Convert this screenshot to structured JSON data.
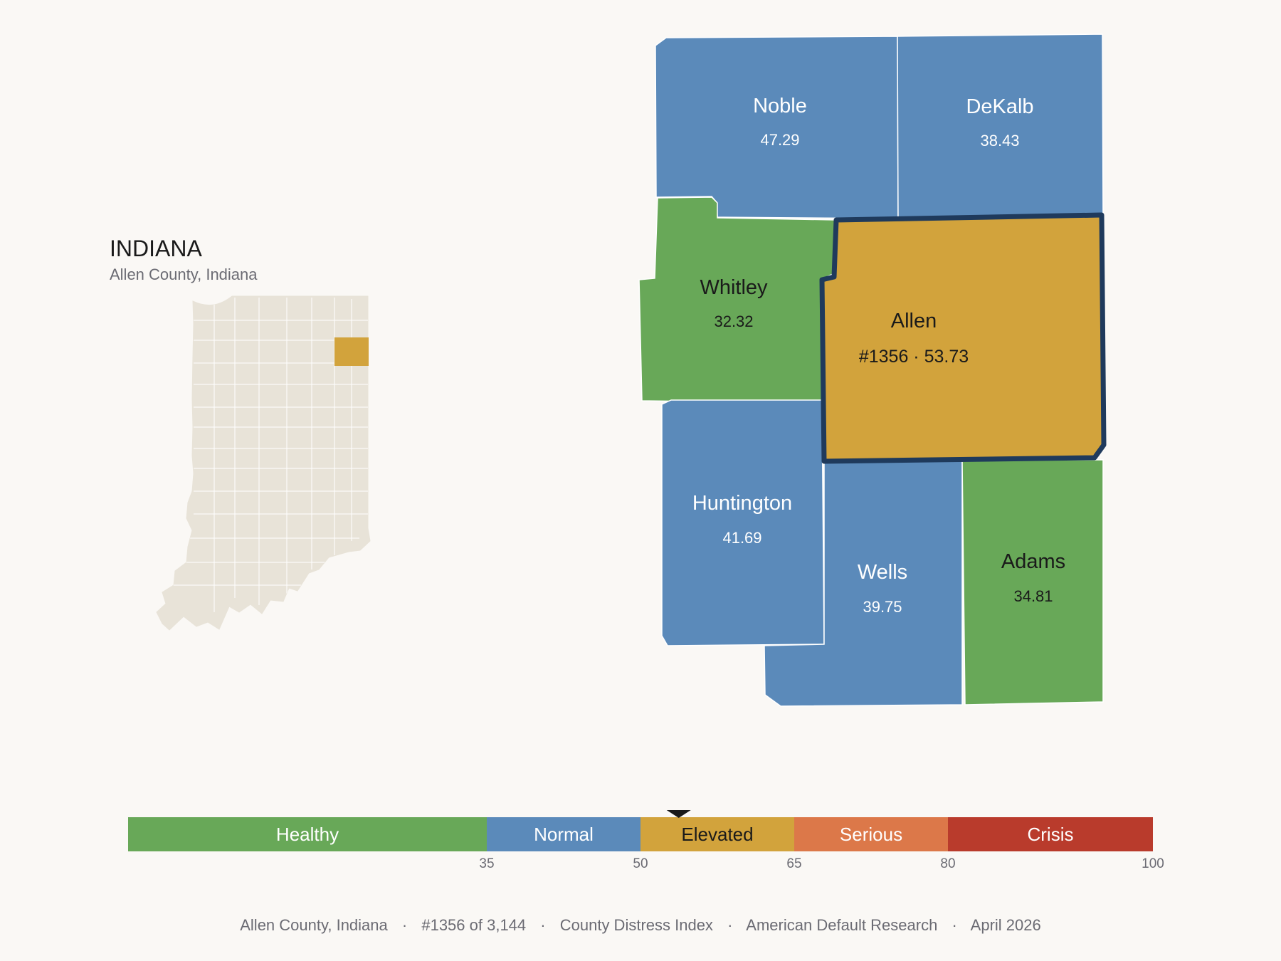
{
  "inset": {
    "state_title": "INDIANA",
    "subtitle": "Allen County, Indiana"
  },
  "colors": {
    "healthy": "#68a858",
    "normal": "#5b8aba",
    "elevated": "#d2a33c",
    "serious": "#dc7849",
    "crisis": "#b93b2c",
    "highlight_border": "#1f3a5c",
    "state_fill": "#e8e3d8",
    "state_line": "#ffffff"
  },
  "counties": [
    {
      "name": "Noble",
      "value": "47.29",
      "category": "normal"
    },
    {
      "name": "DeKalb",
      "value": "38.43",
      "category": "normal"
    },
    {
      "name": "Whitley",
      "value": "32.32",
      "category": "healthy"
    },
    {
      "name": "Allen",
      "value": "#1356 · 53.73",
      "category": "elevated",
      "highlighted": true
    },
    {
      "name": "Huntington",
      "value": "41.69",
      "category": "normal"
    },
    {
      "name": "Wells",
      "value": "39.75",
      "category": "normal"
    },
    {
      "name": "Adams",
      "value": "34.81",
      "category": "healthy"
    }
  ],
  "legend": {
    "bands": [
      {
        "label": "Healthy",
        "from": 0,
        "to": 35,
        "category": "healthy"
      },
      {
        "label": "Normal",
        "from": 35,
        "to": 50,
        "category": "normal"
      },
      {
        "label": "Elevated",
        "from": 50,
        "to": 65,
        "category": "elevated"
      },
      {
        "label": "Serious",
        "from": 65,
        "to": 80,
        "category": "serious"
      },
      {
        "label": "Crisis",
        "from": 80,
        "to": 100,
        "category": "crisis"
      }
    ],
    "ticks": [
      "35",
      "50",
      "65",
      "80",
      "100"
    ],
    "marker_value": 53.73
  },
  "footer": {
    "items": [
      "Allen County, Indiana",
      "#1356 of 3,144",
      "County Distress Index",
      "American Default Research",
      "April 2026"
    ],
    "separator": "·"
  }
}
